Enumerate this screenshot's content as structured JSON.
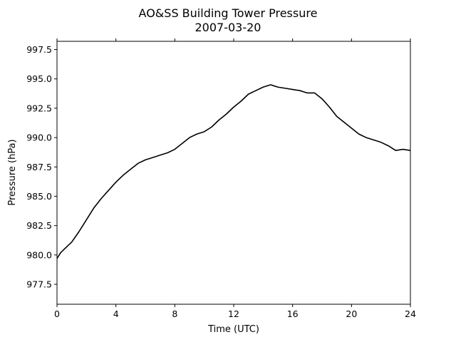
{
  "chart_data": {
    "type": "line",
    "title": "AO&SS Building Tower Pressure",
    "subtitle": "2007-03-20",
    "xlabel": "Time (UTC)",
    "ylabel": "Pressure (hPa)",
    "xlim": [
      0,
      24
    ],
    "ylim": [
      975.8,
      998.2
    ],
    "xticks": [
      0,
      4,
      8,
      12,
      16,
      20,
      24
    ],
    "yticks": [
      977.5,
      980.0,
      982.5,
      985.0,
      987.5,
      990.0,
      992.5,
      995.0,
      997.5
    ],
    "grid": false,
    "line_color": "#000000",
    "series": [
      {
        "x": [
          0,
          0.25,
          0.5,
          1,
          1.5,
          2,
          2.5,
          3,
          3.5,
          4,
          4.5,
          5,
          5.5,
          6,
          6.5,
          7,
          7.5,
          8,
          8.5,
          9,
          9.5,
          10,
          10.5,
          11,
          11.5,
          12,
          12.5,
          13,
          13.5,
          14,
          14.5,
          15,
          15.5,
          16,
          16.5,
          17,
          17.5,
          18,
          18.5,
          19,
          19.5,
          20,
          20.5,
          21,
          21.5,
          22,
          22.5,
          23,
          23.5,
          24
        ],
        "values": [
          979.7,
          980.2,
          980.5,
          981.1,
          982.0,
          983.0,
          984.0,
          984.8,
          985.5,
          986.2,
          986.8,
          987.3,
          987.8,
          988.1,
          988.3,
          988.5,
          988.7,
          989.0,
          989.5,
          990.0,
          990.3,
          990.5,
          990.9,
          991.5,
          992.0,
          992.6,
          993.1,
          993.7,
          994.0,
          994.3,
          994.5,
          994.3,
          994.2,
          994.1,
          994.0,
          993.8,
          993.8,
          993.3,
          992.6,
          991.8,
          991.3,
          990.8,
          990.3,
          990.0,
          989.8,
          989.6,
          989.3,
          988.9,
          989.0,
          988.9
        ]
      }
    ]
  }
}
